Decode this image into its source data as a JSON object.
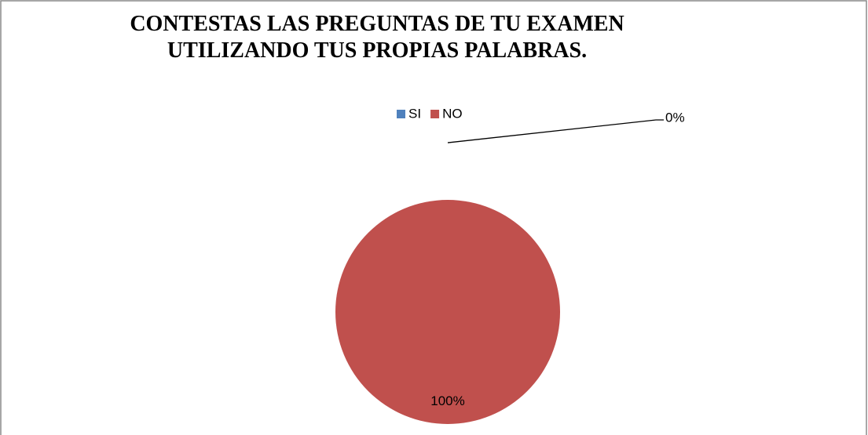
{
  "chart_data": {
    "type": "pie",
    "title": "CONTESTAS LAS PREGUNTAS DE TU EXAMEN UTILIZANDO TUS PROPIAS PALABRAS.",
    "categories": [
      "SI",
      "NO"
    ],
    "values": [
      0,
      100
    ],
    "value_labels": [
      "0%",
      "100%"
    ],
    "colors": [
      "#4f81bd",
      "#c0504d"
    ],
    "legend": "top"
  }
}
